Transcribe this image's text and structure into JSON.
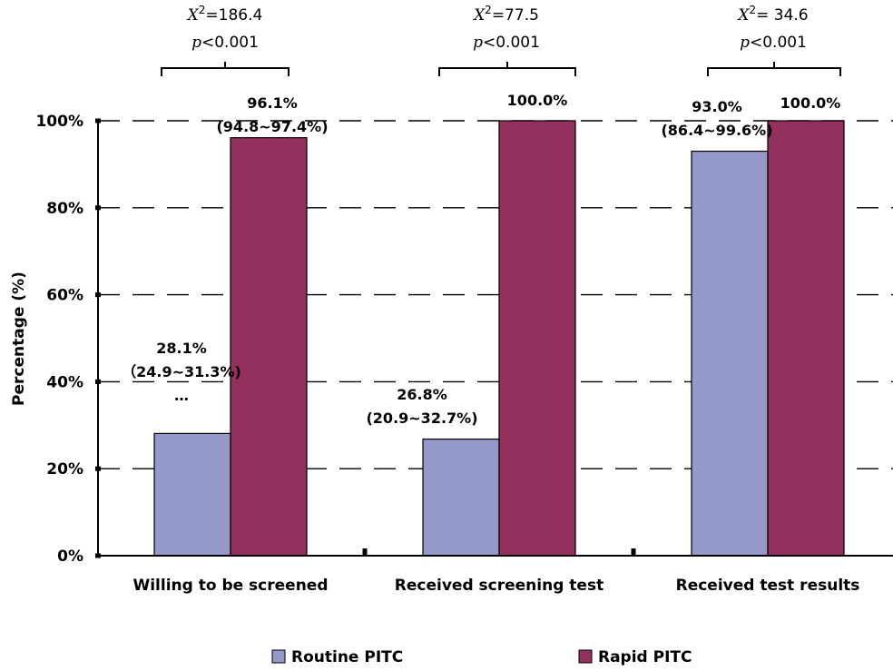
{
  "chart_data": {
    "type": "bar",
    "categories": [
      "Willing to be screened",
      "Received screening test",
      "Received test results"
    ],
    "series": [
      {
        "name": "Routine PITC",
        "color": "#9499c9",
        "values": [
          28.1,
          26.8,
          93.0
        ],
        "labels": [
          [
            "28.1%",
            "（24.9~31.3%)",
            "…"
          ],
          [
            "26.8%",
            "(20.9~32.7%)"
          ],
          [
            "93.0%",
            "(86.4~99.6%)"
          ]
        ]
      },
      {
        "name": "Rapid  PITC",
        "color": "#93305e",
        "values": [
          96.1,
          100.0,
          100.0
        ],
        "labels": [
          [
            "96.1%",
            "(94.8~97.4%)"
          ],
          [
            "100.0%"
          ],
          [
            "100.0%"
          ]
        ]
      }
    ],
    "ylabel": "Percentage (%)",
    "ylim": [
      0,
      100
    ],
    "yticks": [
      "0%",
      "20%",
      "40%",
      "60%",
      "80%",
      "100%"
    ],
    "grid": "dashed horizontal",
    "legend": "bottom",
    "annotations": [
      {
        "chi_symbol": "X",
        "chi_value": "=186.4",
        "p_symbol": "p",
        "p_value": "<0.001"
      },
      {
        "chi_symbol": "X",
        "chi_value": "=77.5",
        "p_symbol": "p",
        "p_value": "<0.001"
      },
      {
        "chi_symbol": "X",
        "chi_value": "= 34.6",
        "p_symbol": "p",
        "p_value": "<0.001"
      }
    ],
    "chi_superscript": "2"
  }
}
